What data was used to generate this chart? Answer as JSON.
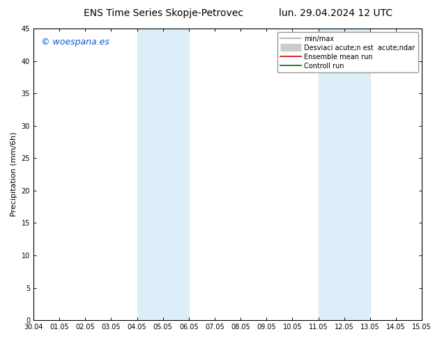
{
  "title_left": "ENS Time Series Skopje-Petrovec",
  "title_right": "lun. 29.04.2024 12 UTC",
  "ylabel": "Precipitation (mm/6h)",
  "watermark": "© woespana.es",
  "ylim": [
    0,
    45
  ],
  "yticks": [
    0,
    5,
    10,
    15,
    20,
    25,
    30,
    35,
    40,
    45
  ],
  "xtick_labels": [
    "30.04",
    "01.05",
    "02.05",
    "03.05",
    "04.05",
    "05.05",
    "06.05",
    "07.05",
    "08.05",
    "09.05",
    "10.05",
    "11.05",
    "12.05",
    "13.05",
    "14.05",
    "15.05"
  ],
  "shaded_bands": [
    {
      "xstart": 4,
      "xend": 6,
      "color": "#ddeef8"
    },
    {
      "xstart": 11,
      "xend": 13,
      "color": "#ddeef8"
    }
  ],
  "legend_entries": [
    {
      "label": "min/max",
      "color": "#aaaaaa",
      "lw": 1.2,
      "linestyle": "-",
      "type": "line"
    },
    {
      "label": "Desviaci acute;n est  acute;ndar",
      "color": "#cccccc",
      "lw": 8,
      "linestyle": "-",
      "type": "thick"
    },
    {
      "label": "Ensemble mean run",
      "color": "#cc0000",
      "lw": 1.2,
      "linestyle": "-",
      "type": "line"
    },
    {
      "label": "Controll run",
      "color": "#006600",
      "lw": 1.2,
      "linestyle": "-",
      "type": "line"
    }
  ],
  "bg_color": "#ffffff",
  "plot_bg_color": "#ffffff",
  "title_fontsize": 10,
  "tick_fontsize": 7,
  "ylabel_fontsize": 8,
  "watermark_fontsize": 9,
  "legend_fontsize": 7
}
